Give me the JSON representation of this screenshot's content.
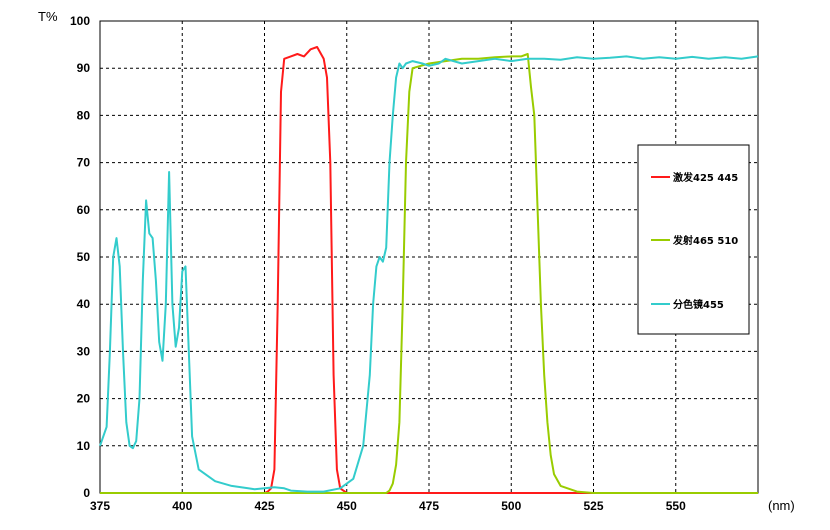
{
  "chart_data": {
    "type": "line",
    "xlabel": "(nm)",
    "ylabel": "T%",
    "xlim": [
      375,
      575
    ],
    "ylim": [
      0,
      100
    ],
    "x_ticks": [
      375,
      400,
      425,
      450,
      475,
      500,
      525,
      550
    ],
    "y_ticks": [
      0,
      10,
      20,
      30,
      40,
      50,
      60,
      70,
      80,
      90,
      100
    ],
    "grid": true,
    "legend_position": "right",
    "series": [
      {
        "name": "激发425 445",
        "color": "#ff1a1a",
        "points": [
          [
            375,
            0
          ],
          [
            425,
            0
          ],
          [
            426,
            0.3
          ],
          [
            427,
            1
          ],
          [
            428,
            5
          ],
          [
            429,
            40
          ],
          [
            430,
            85
          ],
          [
            431,
            92
          ],
          [
            433,
            92.5
          ],
          [
            435,
            93
          ],
          [
            437,
            92.5
          ],
          [
            439,
            94
          ],
          [
            441,
            94.5
          ],
          [
            443,
            92
          ],
          [
            444,
            88
          ],
          [
            445,
            70
          ],
          [
            446,
            25
          ],
          [
            447,
            5
          ],
          [
            448,
            1
          ],
          [
            450,
            0
          ],
          [
            575,
            0
          ]
        ]
      },
      {
        "name": "发射465 510",
        "color": "#99cc00",
        "points": [
          [
            375,
            0
          ],
          [
            462,
            0
          ],
          [
            463,
            0.5
          ],
          [
            464,
            2
          ],
          [
            465,
            6
          ],
          [
            466,
            15
          ],
          [
            467,
            40
          ],
          [
            468,
            70
          ],
          [
            469,
            85
          ],
          [
            470,
            90
          ],
          [
            475,
            91
          ],
          [
            480,
            91.5
          ],
          [
            485,
            92
          ],
          [
            490,
            92
          ],
          [
            495,
            92.3
          ],
          [
            500,
            92.5
          ],
          [
            503,
            92.5
          ],
          [
            505,
            93
          ],
          [
            506,
            86
          ],
          [
            507,
            80
          ],
          [
            508,
            60
          ],
          [
            509,
            40
          ],
          [
            510,
            25
          ],
          [
            511,
            15
          ],
          [
            512,
            8
          ],
          [
            513,
            4
          ],
          [
            515,
            1.5
          ],
          [
            520,
            0.3
          ],
          [
            525,
            0
          ],
          [
            575,
            0
          ]
        ]
      },
      {
        "name": "分色镜455",
        "color": "#33cccc",
        "points": [
          [
            375,
            10
          ],
          [
            377,
            14
          ],
          [
            378,
            30
          ],
          [
            379,
            50
          ],
          [
            380,
            54
          ],
          [
            381,
            48
          ],
          [
            382,
            30
          ],
          [
            383,
            15
          ],
          [
            384,
            10
          ],
          [
            385,
            9.5
          ],
          [
            386,
            11
          ],
          [
            387,
            20
          ],
          [
            388,
            45
          ],
          [
            389,
            62
          ],
          [
            390,
            55
          ],
          [
            391,
            54
          ],
          [
            392,
            45
          ],
          [
            393,
            32
          ],
          [
            394,
            28
          ],
          [
            395,
            40
          ],
          [
            396,
            68
          ],
          [
            397,
            40
          ],
          [
            398,
            31
          ],
          [
            399,
            35
          ],
          [
            400,
            47
          ],
          [
            401,
            48
          ],
          [
            402,
            30
          ],
          [
            403,
            12
          ],
          [
            405,
            5
          ],
          [
            410,
            2.5
          ],
          [
            415,
            1.5
          ],
          [
            420,
            1
          ],
          [
            422,
            0.8
          ],
          [
            425,
            1
          ],
          [
            428,
            1.2
          ],
          [
            431,
            1
          ],
          [
            433,
            0.5
          ],
          [
            438,
            0.3
          ],
          [
            443,
            0.3
          ],
          [
            448,
            1
          ],
          [
            452,
            3
          ],
          [
            455,
            10
          ],
          [
            457,
            25
          ],
          [
            458,
            40
          ],
          [
            459,
            48
          ],
          [
            460,
            50
          ],
          [
            461,
            49
          ],
          [
            462,
            52
          ],
          [
            463,
            70
          ],
          [
            464,
            80
          ],
          [
            465,
            88
          ],
          [
            466,
            91
          ],
          [
            467,
            90
          ],
          [
            468,
            91
          ],
          [
            470,
            91.5
          ],
          [
            473,
            91
          ],
          [
            475,
            90.5
          ],
          [
            478,
            91
          ],
          [
            480,
            92
          ],
          [
            485,
            91
          ],
          [
            490,
            91.5
          ],
          [
            495,
            92
          ],
          [
            500,
            91.5
          ],
          [
            505,
            92
          ],
          [
            510,
            92
          ],
          [
            515,
            91.8
          ],
          [
            520,
            92.3
          ],
          [
            525,
            92
          ],
          [
            530,
            92.2
          ],
          [
            535,
            92.5
          ],
          [
            540,
            92
          ],
          [
            545,
            92.3
          ],
          [
            550,
            92
          ],
          [
            555,
            92.4
          ],
          [
            560,
            92
          ],
          [
            565,
            92.3
          ],
          [
            570,
            92
          ],
          [
            575,
            92.5
          ]
        ]
      }
    ]
  }
}
